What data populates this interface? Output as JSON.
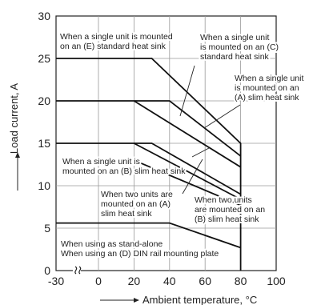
{
  "chart_data": {
    "type": "line",
    "xlabel": "Ambient temperature, °C",
    "ylabel": "Load current, A",
    "x_ticks": [
      "-30",
      "0",
      "20",
      "40",
      "60",
      "80",
      "100"
    ],
    "y_ticks": [
      "0",
      "5",
      "10",
      "15",
      "20",
      "25",
      "30"
    ],
    "xlim": [
      -30,
      100
    ],
    "ylim": [
      0,
      30
    ],
    "x_axis_break": true,
    "grid": true,
    "series": [
      {
        "id": "E",
        "values": [
          [
            -30,
            25
          ],
          [
            30,
            25
          ],
          [
            80,
            15
          ],
          [
            80,
            0
          ]
        ]
      },
      {
        "id": "C",
        "values": [
          [
            -30,
            20
          ],
          [
            40,
            20
          ],
          [
            80,
            13.5
          ]
        ]
      },
      {
        "id": "A",
        "values": [
          [
            20,
            20
          ],
          [
            80,
            12.2
          ]
        ]
      },
      {
        "id": "B",
        "values": [
          [
            -30,
            15
          ],
          [
            30,
            15
          ],
          [
            80,
            9
          ]
        ]
      },
      {
        "id": "two-A",
        "values": [
          [
            20,
            15
          ],
          [
            80,
            8.4
          ]
        ]
      },
      {
        "id": "two-B",
        "values": [
          [
            20,
            13
          ],
          [
            80,
            7.7
          ]
        ]
      },
      {
        "id": "D",
        "values": [
          [
            -30,
            5.6
          ],
          [
            40,
            5.6
          ],
          [
            80,
            2.7
          ]
        ]
      }
    ],
    "annotations": [
      {
        "lines": [
          "When a single unit is mounted",
          "on an (E) standard heat sink"
        ]
      },
      {
        "lines": [
          "When a single unit",
          "is mounted on an (C)",
          "standard heat sink"
        ]
      },
      {
        "lines": [
          "When a single unit",
          "is mounted on an",
          "(A) slim heat sink"
        ]
      },
      {
        "lines": [
          "When a single unit is",
          "mounted on an (B) slim heat sink"
        ]
      },
      {
        "lines": [
          "When two units are",
          "mounted on an (A)",
          "slim heat sink"
        ]
      },
      {
        "lines": [
          "When two units",
          "are mounted on an",
          "(B) slim heat sink"
        ]
      },
      {
        "lines": [
          "When using as stand-alone",
          "When using an (D) DIN rail mounting plate"
        ]
      }
    ]
  }
}
